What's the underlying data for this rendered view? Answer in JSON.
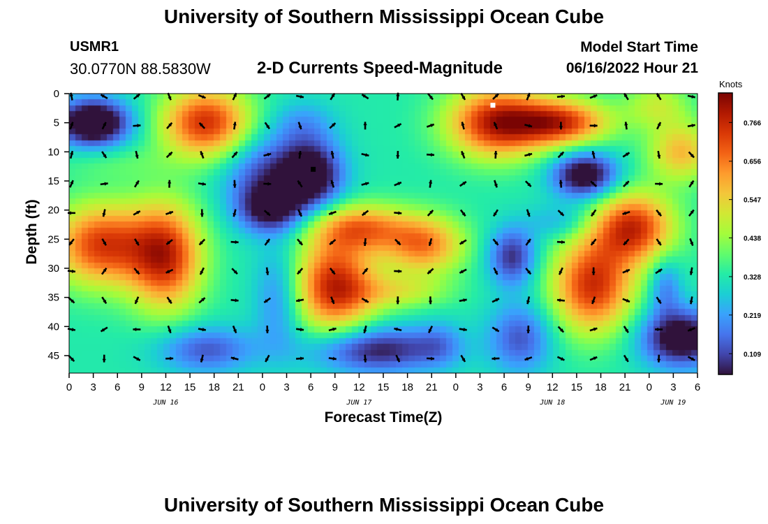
{
  "header": {
    "title": "University of Southern Mississippi Ocean Cube",
    "station_id": "USMR1",
    "station_coords": "30.0770N  88.5830W",
    "subtitle": "2-D Currents Speed-Magnitude",
    "start_label": "Model Start Time",
    "start_value": "06/16/2022 Hour 21"
  },
  "footer": {
    "title": "University of Southern Mississippi Ocean Cube"
  },
  "colors": {
    "arrow": "#000000",
    "marker_white": "#ffffff",
    "marker_black": "#000000",
    "colormap": [
      "#30123b",
      "#4145ab",
      "#4675ed",
      "#39a2fc",
      "#1bcfd4",
      "#24eca6",
      "#61fc6c",
      "#a4fc3b",
      "#d1e834",
      "#f3c63a",
      "#fe9b2d",
      "#f36315",
      "#d93806",
      "#b11901",
      "#7a0403"
    ]
  },
  "chart_data": {
    "type": "heatmap",
    "title": "2-D Currents Speed-Magnitude",
    "xlabel": "Forecast Time(Z)",
    "ylabel": "Depth (ft)",
    "xlim": [
      0,
      78
    ],
    "ylim": [
      0,
      48
    ],
    "y_inverted": true,
    "x_ticks": [
      0,
      3,
      6,
      9,
      12,
      15,
      18,
      21,
      24,
      27,
      30,
      33,
      36,
      39,
      42,
      45,
      48,
      51,
      54,
      57,
      60,
      63,
      66,
      69,
      72,
      75,
      78
    ],
    "x_tick_labels": [
      "0",
      "3",
      "6",
      "9",
      "12",
      "15",
      "18",
      "21",
      "0",
      "3",
      "6",
      "9",
      "12",
      "15",
      "18",
      "21",
      "0",
      "3",
      "6",
      "9",
      "12",
      "15",
      "18",
      "21",
      "0",
      "3",
      "6"
    ],
    "y_ticks": [
      0,
      5,
      10,
      15,
      20,
      25,
      30,
      35,
      40,
      45
    ],
    "y_tick_labels": [
      "0",
      "5",
      "10",
      "15",
      "20",
      "25",
      "30",
      "35",
      "40",
      "45"
    ],
    "day_labels": [
      {
        "text": "JUN 16",
        "x": 12
      },
      {
        "text": "JUN 17",
        "x": 36
      },
      {
        "text": "JUN 18",
        "x": 60
      },
      {
        "text": "JUN 19",
        "x": 75
      }
    ],
    "colorbar": {
      "label": "Knots",
      "range": [
        0.05,
        0.85
      ],
      "ticks": [
        0.109,
        0.219,
        0.328,
        0.438,
        0.547,
        0.656,
        0.766
      ],
      "tick_labels": [
        "0.109",
        "0.219",
        "0.328",
        "0.438",
        "0.547",
        "0.656",
        "0.766"
      ]
    },
    "blobs": [
      {
        "t": 3,
        "d": 5,
        "rt": 4.5,
        "rd": 4,
        "amp": -0.42
      },
      {
        "t": 17,
        "d": 5,
        "rt": 5.5,
        "rd": 6,
        "amp": 0.42
      },
      {
        "t": 4,
        "d": 26,
        "rt": 6,
        "rd": 7,
        "amp": 0.4
      },
      {
        "t": 12,
        "d": 28,
        "rt": 4.5,
        "rd": 9,
        "amp": 0.42
      },
      {
        "t": 6,
        "d": 12,
        "rt": 7,
        "rd": 3,
        "amp": 0.05
      },
      {
        "t": 17,
        "d": 44,
        "rt": 6,
        "rd": 4,
        "amp": -0.2
      },
      {
        "t": 24,
        "d": 14,
        "rt": 5,
        "rd": 7,
        "amp": -0.2
      },
      {
        "t": 26,
        "d": 35,
        "rt": 3,
        "rd": 9,
        "amp": -0.15
      },
      {
        "t": 30,
        "d": 14,
        "rt": 4,
        "rd": 6,
        "amp": -0.35
      },
      {
        "t": 25,
        "d": 20,
        "rt": 4,
        "rd": 4,
        "amp": -0.25
      },
      {
        "t": 29,
        "d": 5,
        "rt": 4,
        "rd": 4,
        "amp": -0.1
      },
      {
        "t": 33,
        "d": 33,
        "rt": 5,
        "rd": 8,
        "amp": 0.44
      },
      {
        "t": 36,
        "d": 23,
        "rt": 6,
        "rd": 4,
        "amp": 0.3
      },
      {
        "t": 44,
        "d": 26,
        "rt": 5,
        "rd": 5,
        "amp": 0.32
      },
      {
        "t": 41,
        "d": 34,
        "rt": 6,
        "rd": 3,
        "amp": 0.15
      },
      {
        "t": 38,
        "d": 44,
        "rt": 8,
        "rd": 4,
        "amp": -0.28
      },
      {
        "t": 46,
        "d": 43,
        "rt": 3,
        "rd": 4,
        "amp": -0.1
      },
      {
        "t": 53,
        "d": 5,
        "rt": 6,
        "rd": 6,
        "amp": 0.44
      },
      {
        "t": 61,
        "d": 5,
        "rt": 6,
        "rd": 4,
        "amp": 0.4
      },
      {
        "t": 64,
        "d": 14,
        "rt": 4,
        "rd": 4,
        "amp": -0.35
      },
      {
        "t": 61,
        "d": 22,
        "rt": 4,
        "rd": 3,
        "amp": -0.1
      },
      {
        "t": 55,
        "d": 28,
        "rt": 3,
        "rd": 5,
        "amp": -0.25
      },
      {
        "t": 56,
        "d": 42,
        "rt": 4,
        "rd": 6,
        "amp": -0.2
      },
      {
        "t": 65,
        "d": 33,
        "rt": 5,
        "rd": 8,
        "amp": 0.42
      },
      {
        "t": 70,
        "d": 23,
        "rt": 5,
        "rd": 6,
        "amp": 0.42
      },
      {
        "t": 76,
        "d": 10,
        "rt": 4,
        "rd": 5,
        "amp": 0.25
      },
      {
        "t": 73,
        "d": 2,
        "rt": 4,
        "rd": 4,
        "amp": 0.15
      },
      {
        "t": 76,
        "d": 42,
        "rt": 5,
        "rd": 5,
        "amp": -0.35
      },
      {
        "t": 74,
        "d": 33,
        "rt": 2,
        "rd": 5,
        "amp": -0.15
      }
    ],
    "arrow_grid": {
      "t_step": 4.05,
      "t_start": 0.3,
      "d_step": 5,
      "d_start": 0.5
    },
    "markers": [
      {
        "t": 52.6,
        "d": 2,
        "color": "white"
      },
      {
        "t": 30.3,
        "d": 13,
        "color": "black"
      }
    ]
  }
}
